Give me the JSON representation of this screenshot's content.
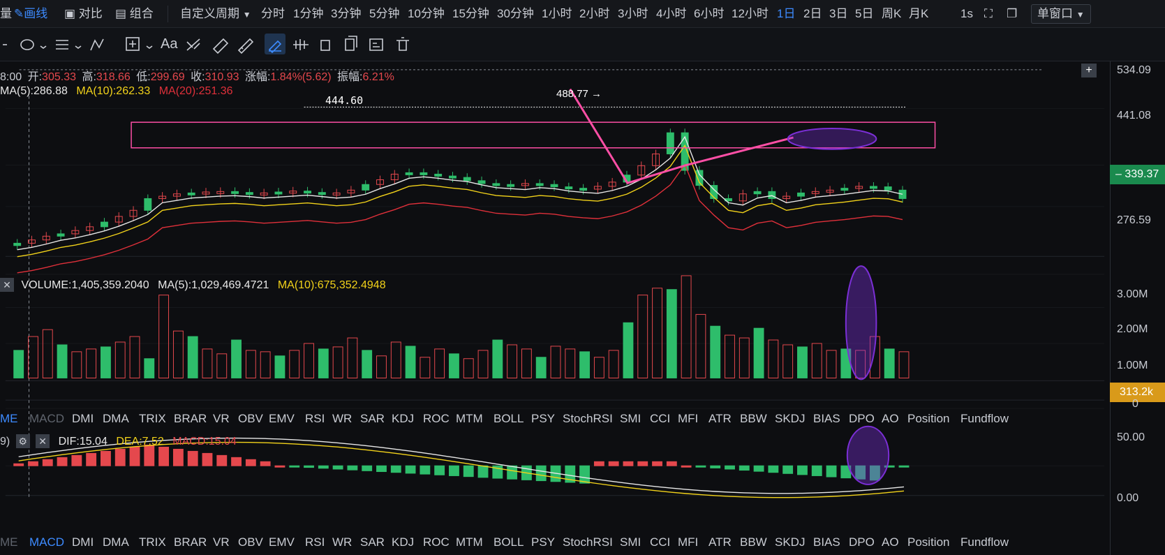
{
  "toolbar": {
    "left_cut": "量",
    "draw_label": "画线",
    "compare_label": "对比",
    "combine_label": "组合",
    "custom_period": "自定义周期",
    "periods": [
      "分时",
      "1分钟",
      "3分钟",
      "5分钟",
      "10分钟",
      "15分钟",
      "30分钟",
      "1小时",
      "2小时",
      "3小时",
      "4小时",
      "6小时",
      "12小时",
      "1日",
      "2日",
      "3日",
      "5日",
      "周K",
      "月K"
    ],
    "active_period": "1日",
    "interval": "1s",
    "window_mode": "单窗口",
    "accent": "#3d8bff"
  },
  "ohlc": {
    "time_fragment": "8:00",
    "open_label": "开:",
    "open": "305.33",
    "high_label": "高:",
    "high": "318.66",
    "low_label": "低:",
    "low": "299.69",
    "close_label": "收:",
    "close": "310.93",
    "change_label": "涨幅:",
    "change": "1.84%(5.62)",
    "amplitude_label": "振幅:",
    "amplitude": "6.21%"
  },
  "ma": {
    "ma5": "MA(5):286.88",
    "ma10": "MA(10):262.33",
    "ma20": "MA(20):251.36"
  },
  "annotations": {
    "high_mark": "444.60",
    "peak_mark": "488.77 →"
  },
  "price_axis": [
    "534.09",
    "441.08",
    "339.37",
    "276.59"
  ],
  "current_price": "339.37",
  "volume": {
    "label": "VOLUME:1,405,359.2040",
    "ma5": "MA(5):1,029,469.4721",
    "ma10": "MA(10):675,352.4948",
    "axis": [
      "3.00M",
      "2.00M",
      "1.00M",
      "0"
    ],
    "current": "313.2k"
  },
  "tabs_top": [
    "ME",
    "MACD",
    "DMI",
    "DMA",
    "TRIX",
    "BRAR",
    "VR",
    "OBV",
    "EMV",
    "RSI",
    "WR",
    "SAR",
    "KDJ",
    "ROC",
    "MTM",
    "BOLL",
    "PSY",
    "StochRSI",
    "SMI",
    "CCI",
    "MFI",
    "ATR",
    "BBW",
    "SKDJ",
    "BIAS",
    "DPO",
    "AO",
    "Position",
    "Fundflow"
  ],
  "macd": {
    "prefix": "9)",
    "dif": "DIF:15.04",
    "dea": "DEA:7.52",
    "macd": "MACD:15.04",
    "axis": [
      "50.00",
      "0.00"
    ]
  },
  "tabs_bottom": [
    "ME",
    "MACD",
    "DMI",
    "DMA",
    "TRIX",
    "BRAR",
    "VR",
    "OBV",
    "EMV",
    "RSI",
    "WR",
    "SAR",
    "KDJ",
    "ROC",
    "MTM",
    "BOLL",
    "PSY",
    "StochRSI",
    "SMI",
    "CCI",
    "MFI",
    "ATR",
    "BBW",
    "SKDJ",
    "BIAS",
    "DPO",
    "AO",
    "Position",
    "Fundflow"
  ],
  "colors": {
    "up": "#2ebd6b",
    "down": "#e5484d",
    "ma5": "#e8e8e8",
    "ma10": "#f2d21a",
    "ma20": "#e0303a",
    "annotation": "#ff4fa6",
    "highlight": "#7b2fd6"
  }
}
